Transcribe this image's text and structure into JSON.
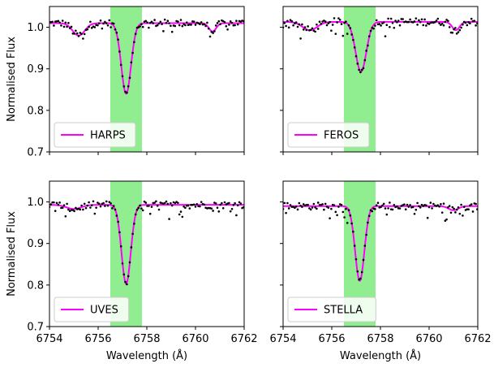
{
  "chart_data": {
    "type": "line",
    "shared": {
      "xlim": [
        6754,
        6762
      ],
      "ylim": [
        0.7,
        1.05
      ],
      "x_ticks": [
        6754,
        6756,
        6758,
        6760,
        6762
      ],
      "y_ticks": [
        0.7,
        0.8,
        0.9,
        1.0
      ],
      "x_tick_labels": [
        "6754",
        "6756",
        "6758",
        "6760",
        "6762"
      ],
      "y_tick_labels": [
        "0.7",
        "0.8",
        "0.9",
        "1.0"
      ],
      "xlabel": "Wavelength (Å)",
      "ylabel": "Normalised Flux",
      "highlight_band": [
        6756.5,
        6757.8
      ],
      "band_color": "#90ee90",
      "model_color": "#ff00ff",
      "data_color": "#000000",
      "legend_position": "lower-left",
      "grid": false
    },
    "panels": [
      {
        "legend": "HARPS",
        "continuum": 1.01,
        "line": {
          "center": 6757.15,
          "depth": 0.17,
          "width": 0.2
        },
        "weak_lines": [
          {
            "center": 6755.2,
            "depth": 0.03,
            "width": 0.25
          },
          {
            "center": 6760.7,
            "depth": 0.02,
            "width": 0.15
          }
        ]
      },
      {
        "legend": "FEROS",
        "continuum": 1.013,
        "line": {
          "center": 6757.2,
          "depth": 0.12,
          "width": 0.22
        },
        "weak_lines": [
          {
            "center": 6755.1,
            "depth": 0.02,
            "width": 0.3
          },
          {
            "center": 6761.1,
            "depth": 0.02,
            "width": 0.15
          }
        ]
      },
      {
        "legend": "UVES",
        "continuum": 0.993,
        "line": {
          "center": 6757.15,
          "depth": 0.19,
          "width": 0.19
        },
        "weak_lines": [
          {
            "center": 6755.0,
            "depth": 0.01,
            "width": 0.3
          }
        ]
      },
      {
        "legend": "STELLA",
        "continuum": 0.99,
        "line": {
          "center": 6757.15,
          "depth": 0.18,
          "width": 0.19
        },
        "weak_lines": [
          {
            "center": 6761.0,
            "depth": 0.01,
            "width": 0.2
          }
        ]
      }
    ]
  }
}
